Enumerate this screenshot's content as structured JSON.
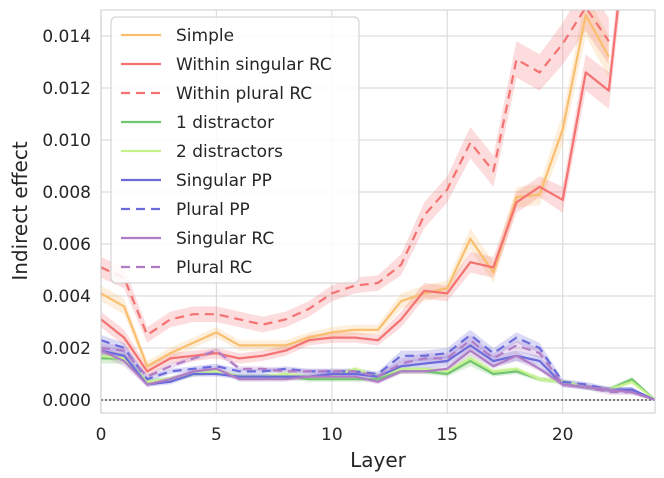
{
  "chart_data": {
    "type": "line",
    "xlabel": "Layer",
    "ylabel": "Indirect effect",
    "xlim": [
      0,
      24
    ],
    "ylim": [
      -0.0005,
      0.015
    ],
    "xticks": [
      "0",
      "5",
      "10",
      "15",
      "20"
    ],
    "xtick_values": [
      0,
      5,
      10,
      15,
      20
    ],
    "yticks": [
      "0.000",
      "0.002",
      "0.004",
      "0.006",
      "0.008",
      "0.010",
      "0.012",
      "0.014"
    ],
    "ytick_values": [
      0,
      0.002,
      0.004,
      0.006,
      0.008,
      0.01,
      0.012,
      0.014
    ],
    "grid": true,
    "legend_position": "top-left",
    "reference_line": 0,
    "x": [
      0,
      1,
      2,
      3,
      4,
      5,
      6,
      7,
      8,
      9,
      10,
      11,
      12,
      13,
      14,
      15,
      16,
      17,
      18,
      19,
      20,
      21,
      22,
      23,
      24
    ],
    "series": [
      {
        "name": "Simple",
        "color": "#f9be6e",
        "dashed": false,
        "values": [
          0.0041,
          0.0036,
          0.0013,
          0.0018,
          0.0022,
          0.0026,
          0.0021,
          0.0021,
          0.0021,
          0.0024,
          0.0026,
          0.0027,
          0.0027,
          0.0038,
          0.0041,
          0.0043,
          0.0062,
          0.0049,
          0.0078,
          0.0079,
          0.0104,
          0.0148,
          0.0132,
          null,
          null
        ],
        "err": [
          0.0003,
          0.0003,
          0.0002,
          0.0002,
          0.0002,
          0.0002,
          0.0002,
          0.0002,
          0.0002,
          0.0002,
          0.0002,
          0.0002,
          0.0002,
          0.0003,
          0.0003,
          0.0003,
          0.0004,
          0.0004,
          0.0004,
          0.0004,
          0.0006,
          0.0008,
          0.0008,
          null,
          null
        ]
      },
      {
        "name": "Within singular RC",
        "color": "#f47272",
        "dashed": false,
        "values": [
          0.0031,
          0.0024,
          0.0011,
          0.0016,
          0.0017,
          0.0018,
          0.0016,
          0.0017,
          0.0019,
          0.0023,
          0.0024,
          0.0024,
          0.0023,
          0.0031,
          0.0042,
          0.0041,
          0.0053,
          0.0051,
          0.0076,
          0.0082,
          0.0077,
          0.0126,
          0.0119,
          0.02,
          null
        ],
        "err": [
          0.0003,
          0.0003,
          0.0002,
          0.0002,
          0.0002,
          0.0002,
          0.0002,
          0.0002,
          0.0002,
          0.0002,
          0.0002,
          0.0002,
          0.0002,
          0.0003,
          0.0003,
          0.0003,
          0.0004,
          0.0004,
          0.0004,
          0.0004,
          0.0005,
          0.0007,
          0.0007,
          0.0009,
          null
        ]
      },
      {
        "name": "Within plural RC",
        "color": "#f47272",
        "dashed": true,
        "values": [
          0.0051,
          0.0047,
          0.0025,
          0.0031,
          0.0033,
          0.0033,
          0.0031,
          0.0029,
          0.0031,
          0.0035,
          0.0041,
          0.0044,
          0.0045,
          0.0052,
          0.0071,
          0.0081,
          0.0099,
          0.0088,
          0.0131,
          0.0126,
          0.0137,
          0.0151,
          0.0138,
          null,
          null
        ],
        "err": [
          0.0004,
          0.0004,
          0.0003,
          0.0003,
          0.0003,
          0.0003,
          0.0003,
          0.0003,
          0.0003,
          0.0003,
          0.0003,
          0.0003,
          0.0003,
          0.0004,
          0.0005,
          0.0005,
          0.0006,
          0.0006,
          0.0007,
          0.0007,
          0.0008,
          0.0009,
          0.0009,
          null,
          null
        ]
      },
      {
        "name": "1 distractor",
        "color": "#72c472",
        "dashed": false,
        "values": [
          0.0016,
          0.0016,
          0.0007,
          0.0008,
          0.001,
          0.0011,
          0.0009,
          0.0009,
          0.0009,
          0.0008,
          0.0008,
          0.0008,
          0.0008,
          0.0011,
          0.0011,
          0.001,
          0.0015,
          0.001,
          0.0011,
          0.0008,
          0.0007,
          0.0005,
          0.0004,
          0.0008,
          0.0
        ],
        "err": [
          0.0002,
          0.0002,
          0.0001,
          0.0001,
          0.0001,
          0.0001,
          0.0001,
          0.0001,
          0.0001,
          0.0001,
          0.0001,
          0.0001,
          0.0001,
          0.0001,
          0.0001,
          0.0001,
          0.0002,
          0.0001,
          0.0001,
          0.0001,
          0.0001,
          0.0001,
          0.0001,
          0.0001,
          0.0
        ]
      },
      {
        "name": "2 distractors",
        "color": "#c6f28e",
        "dashed": false,
        "values": [
          0.0017,
          0.0016,
          0.0007,
          0.0008,
          0.001,
          0.0011,
          0.0009,
          0.0009,
          0.001,
          0.0009,
          0.0009,
          0.0012,
          0.0009,
          0.0012,
          0.0012,
          0.0011,
          0.0016,
          0.0011,
          0.0012,
          0.0008,
          0.0007,
          0.0005,
          0.0004,
          0.0007,
          0.0
        ],
        "err": [
          0.0002,
          0.0002,
          0.0001,
          0.0001,
          0.0001,
          0.0001,
          0.0001,
          0.0001,
          0.0001,
          0.0001,
          0.0001,
          0.0001,
          0.0001,
          0.0001,
          0.0001,
          0.0001,
          0.0002,
          0.0001,
          0.0001,
          0.0001,
          0.0001,
          0.0001,
          0.0001,
          0.0001,
          0.0
        ]
      },
      {
        "name": "Singular PP",
        "color": "#6b6bdc",
        "dashed": false,
        "values": [
          0.0019,
          0.0017,
          0.0006,
          0.0007,
          0.001,
          0.001,
          0.0009,
          0.0009,
          0.0009,
          0.0009,
          0.001,
          0.001,
          0.0009,
          0.0013,
          0.0014,
          0.0015,
          0.0021,
          0.0015,
          0.0017,
          0.0015,
          0.0006,
          0.0005,
          0.0004,
          0.0004,
          0.0
        ],
        "err": [
          0.0002,
          0.0002,
          0.0001,
          0.0001,
          0.0001,
          0.0001,
          0.0001,
          0.0001,
          0.0001,
          0.0001,
          0.0001,
          0.0001,
          0.0001,
          0.0002,
          0.0002,
          0.0002,
          0.0002,
          0.0002,
          0.0002,
          0.0002,
          0.0001,
          0.0001,
          0.0001,
          0.0001,
          0.0
        ]
      },
      {
        "name": "Plural PP",
        "color": "#6b6bdc",
        "dashed": true,
        "values": [
          0.0023,
          0.002,
          0.0008,
          0.0011,
          0.0012,
          0.0013,
          0.0011,
          0.0011,
          0.0012,
          0.0011,
          0.0011,
          0.0011,
          0.001,
          0.0017,
          0.0017,
          0.0018,
          0.0025,
          0.0018,
          0.0024,
          0.002,
          0.0007,
          0.0006,
          0.0004,
          0.0004,
          0.0
        ],
        "err": [
          0.0002,
          0.0002,
          0.0001,
          0.0001,
          0.0001,
          0.0001,
          0.0001,
          0.0001,
          0.0001,
          0.0001,
          0.0001,
          0.0001,
          0.0001,
          0.0002,
          0.0002,
          0.0002,
          0.0002,
          0.0002,
          0.0002,
          0.0002,
          0.0001,
          0.0001,
          0.0001,
          0.0001,
          0.0
        ]
      },
      {
        "name": "Singular RC",
        "color": "#b07cc6",
        "dashed": false,
        "values": [
          0.0019,
          0.0015,
          0.0006,
          0.0008,
          0.0011,
          0.0012,
          0.0008,
          0.0008,
          0.0008,
          0.0009,
          0.0009,
          0.0009,
          0.0007,
          0.0011,
          0.0011,
          0.0012,
          0.0019,
          0.0013,
          0.0017,
          0.0012,
          0.0006,
          0.0005,
          0.0004,
          0.0003,
          0.0
        ],
        "err": [
          0.0002,
          0.0002,
          0.0001,
          0.0001,
          0.0001,
          0.0001,
          0.0001,
          0.0001,
          0.0001,
          0.0001,
          0.0001,
          0.0001,
          0.0001,
          0.0001,
          0.0001,
          0.0001,
          0.0002,
          0.0001,
          0.0002,
          0.0001,
          0.0001,
          0.0001,
          0.0001,
          0.0001,
          0.0
        ]
      },
      {
        "name": "Plural RC",
        "color": "#b07cc6",
        "dashed": true,
        "values": [
          0.002,
          0.0019,
          0.0009,
          0.0013,
          0.0016,
          0.0019,
          0.0012,
          0.0012,
          0.0011,
          0.0011,
          0.0011,
          0.0011,
          0.0009,
          0.0014,
          0.0016,
          0.0016,
          0.0023,
          0.0016,
          0.0021,
          0.0018,
          0.0006,
          0.0005,
          0.0003,
          0.0003,
          0.0
        ],
        "err": [
          0.0002,
          0.0002,
          0.0001,
          0.0001,
          0.0001,
          0.0001,
          0.0001,
          0.0001,
          0.0001,
          0.0001,
          0.0001,
          0.0001,
          0.0001,
          0.0002,
          0.0002,
          0.0002,
          0.0002,
          0.0002,
          0.0002,
          0.0002,
          0.0001,
          0.0001,
          0.0001,
          0.0001,
          0.0
        ]
      }
    ]
  }
}
